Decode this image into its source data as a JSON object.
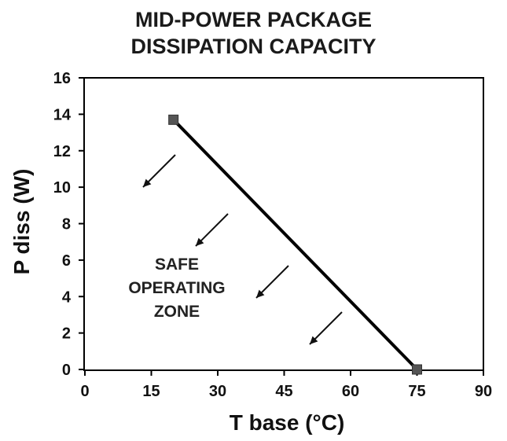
{
  "chart_data": {
    "type": "line",
    "title_lines": [
      "MID-POWER PACKAGE",
      "DISSIPATION CAPACITY"
    ],
    "xlabel": "T base (°C)",
    "ylabel": "P diss (W)",
    "xlim": [
      0,
      90
    ],
    "ylim": [
      0,
      16
    ],
    "x_ticks": [
      0,
      15,
      30,
      45,
      60,
      75,
      90
    ],
    "y_ticks": [
      0,
      2,
      4,
      6,
      8,
      10,
      12,
      14,
      16
    ],
    "grid": false,
    "series": [
      {
        "points": [
          {
            "x": 20,
            "y": 13.7
          },
          {
            "x": 75,
            "y": 0
          }
        ],
        "color": "#000000"
      }
    ],
    "annotation": {
      "lines": [
        "SAFE",
        "OPERATING",
        "ZONE"
      ],
      "arrow_direction": "down-left",
      "arrow_count": 4
    }
  }
}
